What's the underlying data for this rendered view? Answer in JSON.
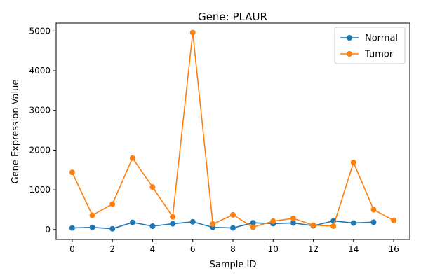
{
  "chart_data": {
    "type": "line",
    "title": "Gene: PLAUR",
    "xlabel": "Sample ID",
    "ylabel": "Gene Expression Value",
    "xlim": [
      -0.8,
      16.8
    ],
    "ylim": [
      -250,
      5200
    ],
    "xticks": [
      0,
      2,
      4,
      6,
      8,
      10,
      12,
      14,
      16
    ],
    "yticks": [
      0,
      1000,
      2000,
      3000,
      4000,
      5000
    ],
    "grid": false,
    "legend_position": "top-right",
    "series": [
      {
        "name": "Normal",
        "color": "#1f77b4",
        "x": [
          0,
          1,
          2,
          3,
          4,
          5,
          6,
          7,
          8,
          9,
          10,
          11,
          12,
          13,
          14,
          15
        ],
        "y": [
          40,
          55,
          20,
          180,
          85,
          145,
          195,
          55,
          40,
          170,
          150,
          165,
          95,
          215,
          165,
          185
        ]
      },
      {
        "name": "Tumor",
        "color": "#ff7f0e",
        "x": [
          0,
          1,
          2,
          3,
          4,
          5,
          6,
          7,
          8,
          9,
          10,
          11,
          12,
          13,
          14,
          15,
          16
        ],
        "y": [
          1440,
          360,
          640,
          1800,
          1070,
          320,
          4960,
          140,
          370,
          60,
          210,
          280,
          110,
          85,
          1690,
          500,
          230
        ]
      }
    ]
  }
}
